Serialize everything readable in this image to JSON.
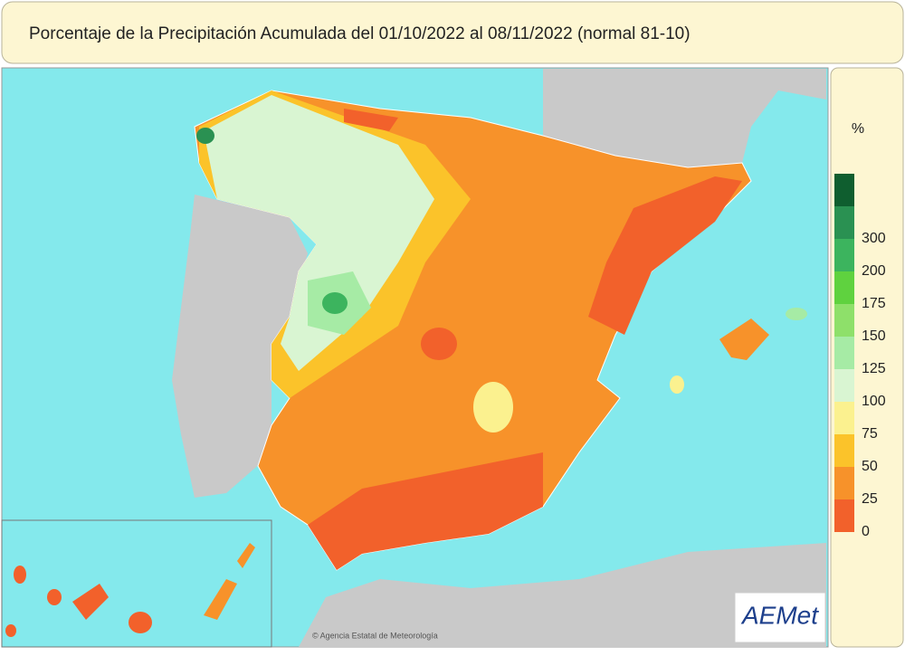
{
  "header": {
    "title": "Porcentaje de la Precipitación Acumulada del 01/10/2022 al 08/11/2022 (normal 81-10)"
  },
  "legend": {
    "unit": "%",
    "ticks": [
      0,
      25,
      50,
      75,
      100,
      125,
      150,
      175,
      200,
      300
    ],
    "colors": [
      "#f2612b",
      "#f7922a",
      "#fbc32a",
      "#fbf18f",
      "#d9f5d2",
      "#a6eba5",
      "#8ee06a",
      "#5fd23f",
      "#3cb45e",
      "#2a9152",
      "#0f5e2f"
    ]
  },
  "footer": {
    "credit": "© Agencia Estatal de Meteorología",
    "logo": "AEMet"
  }
}
